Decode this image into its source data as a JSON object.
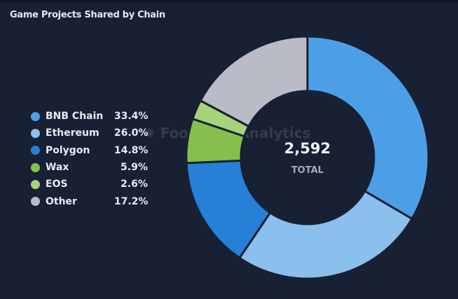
{
  "chart_data": {
    "type": "pie",
    "title": "Game Projects Shared by Chain",
    "donut": true,
    "center_value": "2,592",
    "center_label": "TOTAL",
    "legend_position": "left",
    "categories": [
      "BNB Chain",
      "Ethereum",
      "Polygon",
      "Wax",
      "EOS",
      "Other"
    ],
    "values": [
      33.4,
      26.0,
      14.8,
      5.9,
      2.6,
      17.2
    ],
    "labels": [
      "33.4%",
      "26.0%",
      "14.8%",
      "5.9%",
      "2.6%",
      "17.2%"
    ],
    "colors": [
      "#4c9fe6",
      "#8bbfee",
      "#2580d6",
      "#86bf4c",
      "#a7d37b",
      "#b9bcc6"
    ]
  },
  "watermark": "Footprint Analytics"
}
